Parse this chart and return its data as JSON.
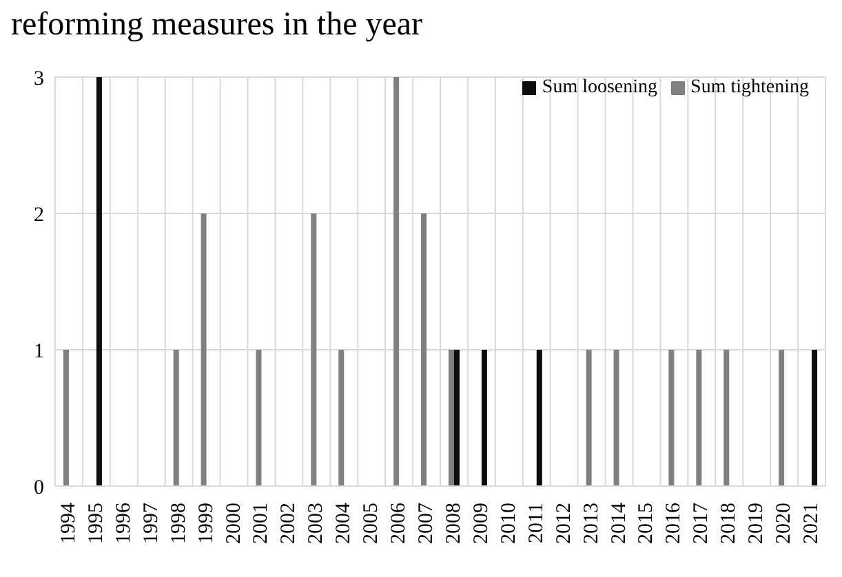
{
  "chart_data": {
    "type": "bar",
    "title": "reforming measures in the year",
    "categories": [
      "1994",
      "1995",
      "1996",
      "1997",
      "1998",
      "1999",
      "2000",
      "2001",
      "2002",
      "2003",
      "2004",
      "2005",
      "2006",
      "2007",
      "2008",
      "2009",
      "2010",
      "2011",
      "2012",
      "2013",
      "2014",
      "2015",
      "2016",
      "2017",
      "2018",
      "2019",
      "2020",
      "2021"
    ],
    "series": [
      {
        "name": "Sum tightening",
        "color": "#808080",
        "values": [
          1,
          0,
          0,
          0,
          1,
          2,
          0,
          1,
          0,
          2,
          1,
          0,
          3,
          2,
          1,
          0,
          0,
          0,
          0,
          1,
          1,
          0,
          1,
          1,
          1,
          0,
          1,
          0
        ]
      },
      {
        "name": "Sum loosening",
        "color": "#0d0d0d",
        "values": [
          0,
          3,
          0,
          0,
          0,
          0,
          0,
          0,
          0,
          0,
          0,
          0,
          0,
          0,
          1,
          1,
          0,
          1,
          0,
          0,
          0,
          0,
          0,
          0,
          0,
          0,
          0,
          1
        ]
      }
    ],
    "ylim": [
      0,
      3
    ],
    "yticks": [
      0,
      1,
      2,
      3
    ],
    "grid": true,
    "legend": "top right"
  }
}
